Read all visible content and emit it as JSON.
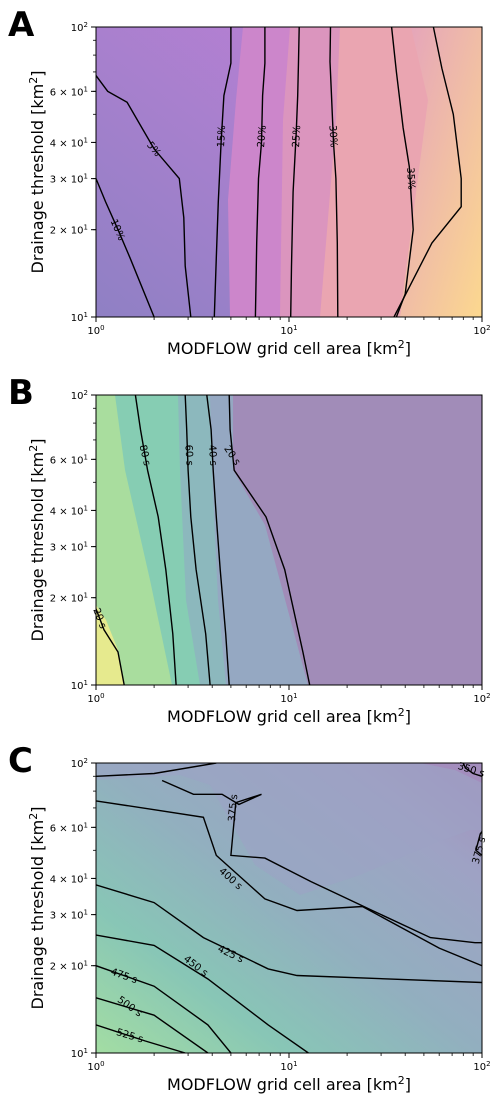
{
  "chart_data": [
    {
      "type": "contour",
      "panel": "A",
      "xlabel": "MODFLOW grid cell area [km$^2$]",
      "ylabel": "Drainage threshold [km$^2$]",
      "xscale": "log",
      "yscale": "log",
      "xlim": [
        1,
        100
      ],
      "ylim": [
        10,
        100
      ],
      "x_ticks": [
        "10^0",
        "10^1",
        "10^2"
      ],
      "y_ticks": [
        "10^1",
        "2×10^1",
        "3×10^1",
        "4×10^1",
        "6×10^1",
        "10^2"
      ],
      "colors": [
        "#8f80c4",
        "#a97ad4",
        "#c480d2",
        "#d58fc4",
        "#e8a3b3",
        "#f3b3a6",
        "#f8c4a0",
        "#fcd68f"
      ],
      "contours": [
        {
          "label": "5%",
          "points": [
            [
              1,
              68
            ],
            [
              1.15,
              60
            ],
            [
              1.45,
              55
            ],
            [
              2.0,
              38
            ],
            [
              2.7,
              30
            ],
            [
              2.85,
              22
            ],
            [
              2.9,
              15
            ],
            [
              3.1,
              10
            ]
          ]
        },
        {
          "label": "10%",
          "points": [
            [
              1,
              30
            ],
            [
              1.12,
              25
            ],
            [
              1.3,
              20
            ],
            [
              1.5,
              16
            ],
            [
              2.0,
              10
            ]
          ]
        },
        {
          "label": "15%",
          "points": [
            [
              5.0,
              100
            ],
            [
              5.0,
              75
            ],
            [
              4.6,
              58
            ],
            [
              4.45,
              40
            ],
            [
              4.3,
              25
            ],
            [
              4.2,
              16
            ],
            [
              4.1,
              10
            ]
          ]
        },
        {
          "label": "20%",
          "points": [
            [
              7.5,
              100
            ],
            [
              7.5,
              75
            ],
            [
              7.3,
              58
            ],
            [
              7.2,
              40
            ],
            [
              6.95,
              30
            ],
            [
              6.8,
              18
            ],
            [
              6.7,
              10
            ]
          ]
        },
        {
          "label": "25%",
          "points": [
            [
              11.3,
              100
            ],
            [
              11.2,
              76
            ],
            [
              11.1,
              58
            ],
            [
              10.9,
              43
            ],
            [
              10.5,
              27
            ],
            [
              10.3,
              15
            ],
            [
              10.2,
              10
            ]
          ]
        },
        {
          "label": "30%",
          "points": [
            [
              16.4,
              100
            ],
            [
              16.3,
              76
            ],
            [
              16.6,
              58
            ],
            [
              17.0,
              40
            ],
            [
              17.5,
              30
            ],
            [
              17.8,
              18
            ],
            [
              17.9,
              10
            ]
          ]
        },
        {
          "label": "35%",
          "points": [
            [
              34,
              100
            ],
            [
              36,
              70
            ],
            [
              39,
              45
            ],
            [
              42,
              33
            ],
            [
              44,
              20
            ],
            [
              40,
              12
            ],
            [
              36,
              10
            ]
          ]
        },
        {
          "label": "",
          "points": [
            [
              56,
              100
            ],
            [
              62,
              72
            ],
            [
              71,
              50
            ],
            [
              78,
              30
            ],
            [
              78,
              24
            ],
            [
              55,
              18
            ],
            [
              35,
              10
            ]
          ]
        }
      ]
    },
    {
      "type": "contour",
      "panel": "B",
      "xlabel": "MODFLOW grid cell area [km$^2$]",
      "ylabel": "Drainage threshold [km$^2$]",
      "xscale": "log",
      "yscale": "log",
      "xlim": [
        1,
        100
      ],
      "ylim": [
        10,
        100
      ],
      "x_ticks": [
        "10^0",
        "10^1",
        "10^2"
      ],
      "y_ticks": [
        "10^1",
        "2×10^1",
        "3×10^1",
        "4×10^1",
        "6×10^1",
        "10^2"
      ],
      "colors": [
        "#e6ea8e",
        "#a9dd9e",
        "#86cdb3",
        "#8cb8bd",
        "#95a8c2",
        "#a18cb8"
      ],
      "contours": [
        {
          "label": "20 s",
          "points": [
            [
              1,
              18.3
            ],
            [
              1.1,
              15.5
            ],
            [
              1.3,
              13
            ],
            [
              1.4,
              10
            ]
          ]
        },
        {
          "label": "80 s",
          "points": [
            [
              1.6,
              100
            ],
            [
              1.7,
              76
            ],
            [
              1.85,
              55
            ],
            [
              2.1,
              38
            ],
            [
              2.3,
              25
            ],
            [
              2.5,
              15
            ],
            [
              2.6,
              10
            ]
          ]
        },
        {
          "label": "60 s",
          "points": [
            [
              2.9,
              100
            ],
            [
              2.95,
              76
            ],
            [
              3.0,
              55
            ],
            [
              3.1,
              38
            ],
            [
              3.3,
              25
            ],
            [
              3.7,
              15
            ],
            [
              3.9,
              10
            ]
          ]
        },
        {
          "label": "40 s",
          "points": [
            [
              3.75,
              100
            ],
            [
              3.95,
              76
            ],
            [
              4.05,
              55
            ],
            [
              4.2,
              38
            ],
            [
              4.4,
              25
            ],
            [
              4.7,
              15
            ],
            [
              4.9,
              10
            ]
          ]
        },
        {
          "label": "20 s",
          "points": [
            [
              4.9,
              100
            ],
            [
              4.95,
              76
            ],
            [
              5.2,
              55
            ],
            [
              7.6,
              38
            ],
            [
              9.5,
              25
            ],
            [
              11.8,
              13
            ],
            [
              12.8,
              10
            ]
          ]
        }
      ]
    },
    {
      "type": "contour",
      "panel": "C",
      "xlabel": "MODFLOW grid cell area [km$^2$]",
      "ylabel": "Drainage threshold [km$^2$]",
      "xscale": "log",
      "yscale": "log",
      "xlim": [
        1,
        100
      ],
      "ylim": [
        10,
        100
      ],
      "x_ticks": [
        "10^0",
        "10^1",
        "10^2"
      ],
      "y_ticks": [
        "10^1",
        "2×10^1",
        "3×10^1",
        "4×10^1",
        "6×10^1",
        "10^2"
      ],
      "colors": [
        "#a0d9a7",
        "#8ecfb0",
        "#86c1b6",
        "#8db4bb",
        "#95a8c2",
        "#9ea0c4",
        "#9f8fbd"
      ],
      "contours": [
        {
          "label": "350 s",
          "points": [
            [
              80,
              100
            ],
            [
              82,
              96
            ],
            [
              90,
              92
            ],
            [
              100,
              90
            ]
          ]
        },
        {
          "label": "375 s",
          "points": [
            [
              1,
              90
            ],
            [
              2,
              92
            ],
            [
              4.2,
              100
            ]
          ]
        },
        {
          "label": "375 s",
          "points": [
            [
              2.2,
              87
            ],
            [
              3.2,
              78
            ],
            [
              4.5,
              78
            ],
            [
              5.5,
              72
            ],
            [
              7.2,
              78
            ],
            [
              5.3,
              73
            ],
            [
              5.0,
              48
            ],
            [
              7.5,
              47
            ],
            [
              13,
              39
            ],
            [
              27,
              31
            ],
            [
              54,
              25
            ],
            [
              92,
              24
            ],
            [
              100,
              24
            ]
          ]
        },
        {
          "label": "375 s",
          "points": [
            [
              100,
              48
            ],
            [
              93,
              50
            ],
            [
              98,
              57
            ],
            [
              100,
              58
            ]
          ]
        },
        {
          "label": "400 s",
          "points": [
            [
              1,
              74
            ],
            [
              2,
              69
            ],
            [
              3.6,
              65
            ],
            [
              4.2,
              48
            ],
            [
              7.5,
              34
            ],
            [
              11,
              31
            ],
            [
              24,
              32
            ],
            [
              60,
              23
            ],
            [
              100,
              20
            ]
          ]
        },
        {
          "label": "425 s",
          "points": [
            [
              1,
              38
            ],
            [
              2,
              33
            ],
            [
              3.6,
              25
            ],
            [
              7.8,
              19.5
            ],
            [
              11,
              18.5
            ],
            [
              100,
              17.5
            ]
          ]
        },
        {
          "label": "450 s",
          "points": [
            [
              1,
              25.5
            ],
            [
              2,
              23.5
            ],
            [
              3.8,
              18
            ],
            [
              7.8,
              12.5
            ],
            [
              12.6,
              10
            ]
          ]
        },
        {
          "label": "475 s",
          "points": [
            [
              1,
              20
            ],
            [
              2,
              17
            ],
            [
              3.8,
              12.5
            ],
            [
              5,
              10
            ]
          ]
        },
        {
          "label": "500 s",
          "points": [
            [
              1,
              15.5
            ],
            [
              2,
              13.5
            ],
            [
              3.8,
              10
            ]
          ]
        },
        {
          "label": "525 s",
          "points": [
            [
              1,
              12.5
            ],
            [
              1.8,
              11
            ],
            [
              2.9,
              10
            ]
          ]
        }
      ]
    }
  ]
}
